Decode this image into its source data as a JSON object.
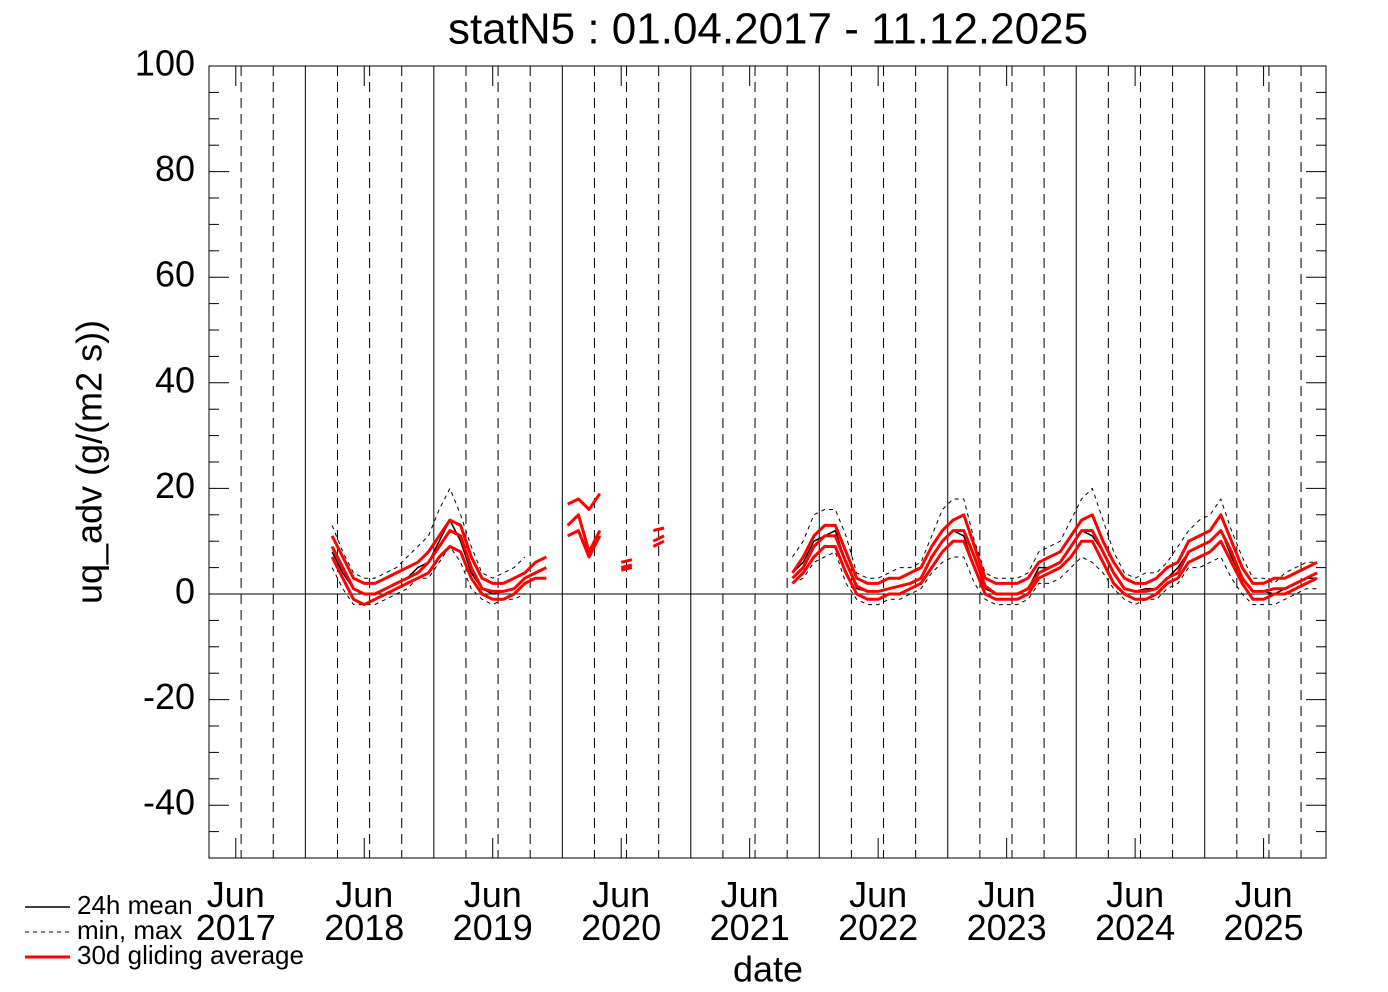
{
  "chart_data": {
    "type": "line",
    "title": "statN5 : 01.04.2017 - 11.12.2025",
    "xlabel": "date",
    "ylabel": "uq_adv (g/(m2 s))",
    "xlim": [
      "2017-04-01",
      "2025-12-11"
    ],
    "ylim": [
      -50,
      100
    ],
    "yticks": [
      -40,
      -20,
      0,
      20,
      40,
      60,
      80,
      100
    ],
    "yminorticks": [
      -45,
      -35,
      -30,
      -25,
      -15,
      -10,
      -5,
      5,
      10,
      15,
      25,
      30,
      35,
      45,
      50,
      55,
      65,
      70,
      75,
      85,
      90,
      95
    ],
    "xticks": [
      {
        "value": "2017-06",
        "label": "Jun\n2017"
      },
      {
        "value": "2018-06",
        "label": "Jun\n2018"
      },
      {
        "value": "2019-06",
        "label": "Jun\n2019"
      },
      {
        "value": "2020-06",
        "label": "Jun\n2020"
      },
      {
        "value": "2021-06",
        "label": "Jun\n2021"
      },
      {
        "value": "2022-06",
        "label": "Jun\n2022"
      },
      {
        "value": "2023-06",
        "label": "Jun\n2023"
      },
      {
        "value": "2024-06",
        "label": "Jun\n2024"
      },
      {
        "value": "2025-06",
        "label": "Jun\n2025"
      }
    ],
    "xgrid_major": [
      "2018-01-01",
      "2019-01-01",
      "2020-01-01",
      "2021-01-01",
      "2022-01-01",
      "2023-01-01",
      "2024-01-01",
      "2025-01-01"
    ],
    "xgrid_minor": [
      "2017-07-01",
      "2017-10-01",
      "2018-04-01",
      "2018-07-01",
      "2018-10-01",
      "2019-04-01",
      "2019-07-01",
      "2019-10-01",
      "2020-04-01",
      "2020-07-01",
      "2020-10-01",
      "2021-04-01",
      "2021-07-01",
      "2021-10-01",
      "2022-04-01",
      "2022-07-01",
      "2022-10-01",
      "2023-04-01",
      "2023-07-01",
      "2023-10-01",
      "2024-04-01",
      "2024-07-01",
      "2024-10-01",
      "2025-04-01",
      "2025-07-01",
      "2025-10-01"
    ],
    "legend": "lower left",
    "x": [
      "2018-03",
      "2018-04",
      "2018-05",
      "2018-06",
      "2018-07",
      "2018-08",
      "2018-09",
      "2018-10",
      "2018-11",
      "2018-12",
      "2019-01",
      "2019-02",
      "2019-03",
      "2019-04",
      "2019-05",
      "2019-06",
      "2019-07",
      "2019-08",
      "2019-09",
      "2019-10",
      "2019-11",
      "2019-12",
      "2020-01",
      "2020-02",
      "2020-03",
      "2020-04",
      "2020-05",
      "2020-06",
      "2020-07",
      "2020-08",
      "2020-09",
      "2020-10",
      "2020-11",
      "2020-12",
      "2021-01",
      "2021-02",
      "2021-03",
      "2021-04",
      "2021-05",
      "2021-06",
      "2021-07",
      "2021-08",
      "2021-09",
      "2021-10",
      "2021-11",
      "2021-12",
      "2022-01",
      "2022-02",
      "2022-03",
      "2022-04",
      "2022-05",
      "2022-06",
      "2022-07",
      "2022-08",
      "2022-09",
      "2022-10",
      "2022-11",
      "2022-12",
      "2023-01",
      "2023-02",
      "2023-03",
      "2023-04",
      "2023-05",
      "2023-06",
      "2023-07",
      "2023-08",
      "2023-09",
      "2023-10",
      "2023-11",
      "2023-12",
      "2024-01",
      "2024-02",
      "2024-03",
      "2024-04",
      "2024-05",
      "2024-06",
      "2024-07",
      "2024-08",
      "2024-09",
      "2024-10",
      "2024-11",
      "2024-12",
      "2025-01",
      "2025-02",
      "2025-03",
      "2025-04",
      "2025-05",
      "2025-06",
      "2025-07",
      "2025-08",
      "2025-09",
      "2025-10",
      "2025-11"
    ],
    "series": [
      {
        "name": "24h mean",
        "color": "#000000",
        "width": 1.5,
        "values": [
          8,
          4,
          1,
          0,
          0,
          1,
          2,
          3,
          5,
          6,
          10,
          14,
          10,
          4,
          1,
          0,
          0.5,
          1,
          3,
          null,
          null,
          null,
          null,
          null,
          null,
          null,
          null,
          null,
          null,
          null,
          null,
          null,
          null,
          null,
          null,
          null,
          null,
          null,
          null,
          null,
          null,
          null,
          null,
          4,
          6,
          10,
          11,
          12,
          6,
          1,
          0.5,
          0.5,
          1,
          1.5,
          2,
          3,
          7,
          10,
          12,
          11,
          5,
          1,
          0,
          0,
          0,
          1,
          5,
          5,
          6,
          9,
          12,
          11,
          8,
          4,
          1,
          0.5,
          1,
          1,
          3,
          5,
          8,
          9,
          10,
          12,
          7,
          3,
          0.5,
          0.5,
          0,
          1,
          2,
          3,
          3
        ]
      },
      {
        "name": "min, max",
        "color": "#000000",
        "width": 1,
        "dash": "4 4",
        "min": [
          5,
          1,
          -2,
          -2,
          -2,
          -1,
          0,
          1,
          3,
          3,
          6,
          9,
          6,
          1,
          -1,
          -2,
          -1,
          -1,
          0,
          null,
          null,
          null,
          null,
          null,
          null,
          null,
          null,
          null,
          null,
          null,
          null,
          null,
          null,
          null,
          null,
          null,
          null,
          null,
          null,
          null,
          null,
          null,
          null,
          2,
          3,
          6,
          7,
          8,
          2,
          -1,
          -2,
          -2,
          -1,
          -1,
          0,
          1,
          4,
          6,
          7,
          7,
          2,
          -1,
          -2,
          -2,
          -2,
          -1,
          2,
          2,
          3,
          5,
          7,
          6,
          4,
          1,
          -1,
          -2,
          -1,
          -1,
          1,
          2,
          5,
          5,
          6,
          7,
          3,
          0,
          -2,
          -2,
          -2,
          -1,
          0,
          1,
          1
        ],
        "max": [
          13,
          8,
          4,
          3,
          3,
          4,
          5,
          7,
          9,
          11,
          16,
          20,
          15,
          9,
          4,
          3,
          4,
          5,
          7,
          null,
          null,
          null,
          null,
          null,
          null,
          null,
          null,
          null,
          null,
          null,
          null,
          null,
          null,
          null,
          null,
          null,
          null,
          null,
          null,
          null,
          null,
          null,
          null,
          7,
          10,
          15,
          16,
          16,
          11,
          4,
          3,
          3,
          4,
          5,
          5,
          6,
          11,
          16,
          18,
          18,
          10,
          4,
          3,
          3,
          3,
          4,
          8,
          9,
          10,
          14,
          18,
          20,
          14,
          8,
          4,
          3,
          4,
          4,
          6,
          9,
          12,
          14,
          15,
          18,
          12,
          7,
          3,
          3,
          2,
          4,
          5,
          6,
          6
        ]
      },
      {
        "name": "30d gliding average",
        "color": "#ff0000",
        "width": 3,
        "values": [
          9,
          5,
          1,
          0,
          0,
          1,
          2,
          3,
          4,
          6,
          9,
          12,
          11,
          5,
          1,
          0.5,
          0.5,
          1,
          3,
          4,
          5,
          null,
          13,
          15,
          8,
          12,
          null,
          5,
          5.5,
          null,
          10,
          11,
          null,
          null,
          null,
          null,
          null,
          null,
          null,
          null,
          null,
          null,
          null,
          3,
          5,
          9,
          11,
          11,
          6,
          1.5,
          0.5,
          0.5,
          1,
          1.5,
          2,
          3,
          7,
          10,
          12,
          12,
          7,
          1.5,
          0,
          0,
          0,
          1,
          4,
          5,
          6,
          9,
          12,
          12,
          8,
          4,
          1,
          0.5,
          0.5,
          1,
          3,
          4,
          8,
          9,
          10,
          12,
          8,
          3,
          0.5,
          0.5,
          1,
          1,
          2,
          3,
          4
        ],
        "min": [
          7,
          3,
          -1,
          -2,
          -1,
          0,
          1,
          2,
          3,
          4,
          7,
          9,
          8,
          3,
          0,
          -1,
          -1,
          0,
          2,
          3,
          3,
          null,
          11,
          12,
          7,
          11,
          null,
          4.5,
          5,
          null,
          9,
          10,
          null,
          null,
          null,
          null,
          null,
          null,
          null,
          null,
          null,
          null,
          null,
          2,
          4,
          7,
          9,
          9,
          4,
          0,
          -1,
          -1,
          0,
          0,
          1,
          2,
          5,
          8,
          10,
          10,
          5,
          0,
          -1,
          -1,
          -1,
          0,
          3,
          4,
          5,
          7,
          10,
          10,
          6,
          2,
          0,
          -1,
          -1,
          0,
          2,
          3,
          6,
          7,
          8,
          10,
          6,
          2,
          -1,
          -1,
          0,
          0,
          1,
          2,
          3
        ],
        "max": [
          11,
          7,
          3,
          2,
          2,
          3,
          4,
          5,
          6,
          8,
          11,
          14,
          13,
          7,
          3,
          2,
          2,
          3,
          4,
          6,
          7,
          null,
          17,
          18,
          16,
          19,
          null,
          6,
          6.5,
          null,
          12,
          12.5,
          null,
          null,
          null,
          null,
          null,
          null,
          null,
          null,
          null,
          null,
          null,
          4,
          7,
          11,
          13,
          13,
          8,
          3,
          2,
          2,
          3,
          3,
          4,
          5,
          9,
          12,
          14,
          15,
          9,
          3,
          2,
          2,
          2,
          3,
          6,
          7,
          8,
          11,
          14,
          15,
          10,
          6,
          3,
          2,
          2,
          3,
          5,
          6,
          10,
          11,
          12,
          15,
          10,
          5,
          2,
          2,
          3,
          3,
          4,
          5,
          6
        ]
      }
    ]
  }
}
